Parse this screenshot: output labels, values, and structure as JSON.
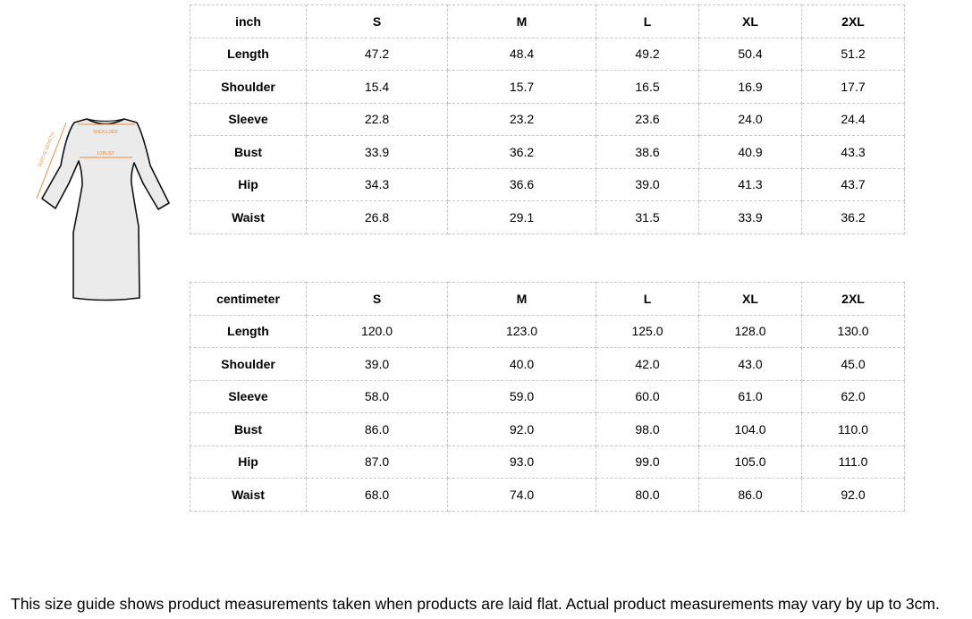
{
  "illustration": {
    "labels": [
      "SHOULDER",
      "1/2BUST",
      "SLEEVE LENGTH"
    ],
    "accent": "#f08a3c"
  },
  "sizes": [
    "S",
    "M",
    "L",
    "XL",
    "2XL"
  ],
  "inch_table": {
    "unit": "inch",
    "rows": [
      {
        "label": "Length",
        "values": [
          "47.2",
          "48.4",
          "49.2",
          "50.4",
          "51.2"
        ]
      },
      {
        "label": "Shoulder",
        "values": [
          "15.4",
          "15.7",
          "16.5",
          "16.9",
          "17.7"
        ]
      },
      {
        "label": "Sleeve",
        "values": [
          "22.8",
          "23.2",
          "23.6",
          "24.0",
          "24.4"
        ]
      },
      {
        "label": "Bust",
        "values": [
          "33.9",
          "36.2",
          "38.6",
          "40.9",
          "43.3"
        ]
      },
      {
        "label": "Hip",
        "values": [
          "34.3",
          "36.6",
          "39.0",
          "41.3",
          "43.7"
        ]
      },
      {
        "label": "Waist",
        "values": [
          "26.8",
          "29.1",
          "31.5",
          "33.9",
          "36.2"
        ]
      }
    ]
  },
  "cm_table": {
    "unit": "centimeter",
    "rows": [
      {
        "label": "Length",
        "values": [
          "120.0",
          "123.0",
          "125.0",
          "128.0",
          "130.0"
        ]
      },
      {
        "label": "Shoulder",
        "values": [
          "39.0",
          "40.0",
          "42.0",
          "43.0",
          "45.0"
        ]
      },
      {
        "label": "Sleeve",
        "values": [
          "58.0",
          "59.0",
          "60.0",
          "61.0",
          "62.0"
        ]
      },
      {
        "label": "Bust",
        "values": [
          "86.0",
          "92.0",
          "98.0",
          "104.0",
          "110.0"
        ]
      },
      {
        "label": "Hip",
        "values": [
          "87.0",
          "93.0",
          "99.0",
          "105.0",
          "111.0"
        ]
      },
      {
        "label": "Waist",
        "values": [
          "68.0",
          "74.0",
          "80.0",
          "86.0",
          "92.0"
        ]
      }
    ]
  },
  "footnote": "This size guide shows product measurements taken when products are laid flat. Actual product measurements may vary by up to 3cm."
}
